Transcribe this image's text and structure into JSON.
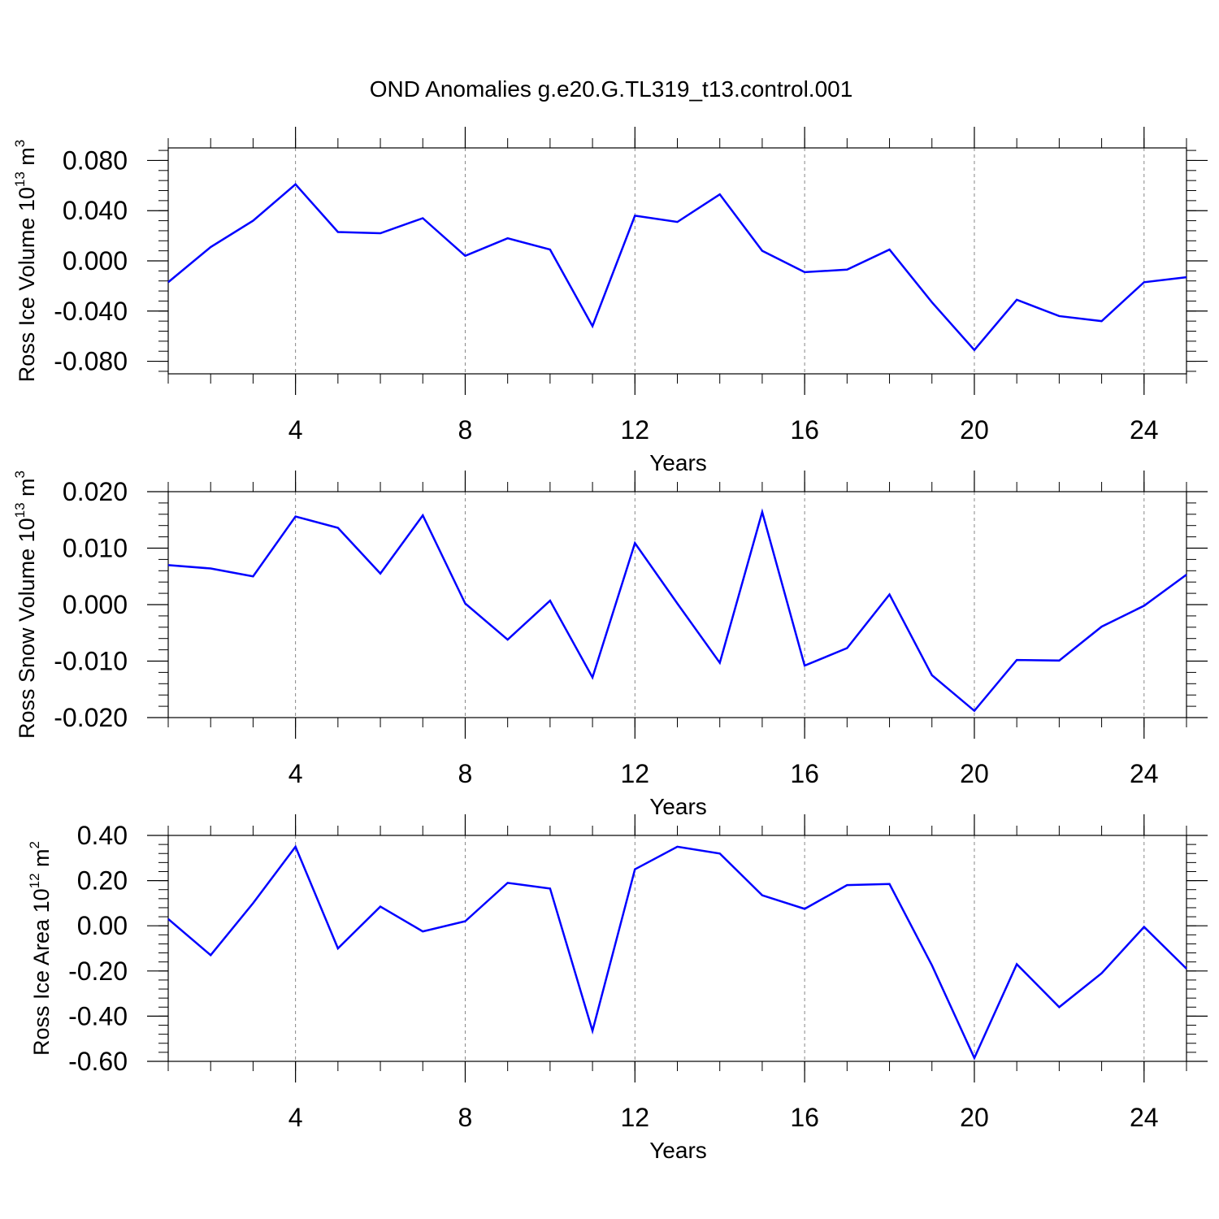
{
  "figure": {
    "title": "OND Anomalies g.e20.G.TL319_t13.control.001",
    "line_color": "#0000ff",
    "grid_color": "#888888"
  },
  "chart_data": [
    {
      "type": "line",
      "title": "OND Anomalies g.e20.G.TL319_t13.control.001",
      "xlabel": "Years",
      "ylabel": {
        "text": "Ross Ice Volume 10",
        "exponent": "13",
        "unit": " m",
        "unit_exponent": "3"
      },
      "xlim": [
        1,
        25
      ],
      "ylim": [
        -0.09,
        0.09
      ],
      "x_ticks": [
        4,
        8,
        12,
        16,
        20,
        24
      ],
      "x_tick_labels": [
        "4",
        "8",
        "12",
        "16",
        "20",
        "24"
      ],
      "y_ticks": [
        0.08,
        0.04,
        0.0,
        -0.04,
        -0.08
      ],
      "y_tick_labels": [
        "0.080",
        "0.040",
        "0.000",
        "-0.040",
        "-0.080"
      ],
      "grid": "x dashed at labeled ticks",
      "series": [
        {
          "x": [
            1,
            2,
            3,
            4,
            5,
            6,
            7,
            8,
            9,
            10,
            11,
            12,
            13,
            14,
            15,
            16,
            17,
            18,
            19,
            20,
            21,
            22,
            23,
            24,
            25
          ],
          "values": [
            -0.017,
            0.011,
            0.032,
            0.061,
            0.023,
            0.022,
            0.034,
            0.004,
            0.018,
            0.009,
            -0.052,
            0.036,
            0.031,
            0.053,
            0.008,
            -0.009,
            -0.007,
            0.009,
            -0.033,
            -0.071,
            -0.031,
            -0.044,
            -0.048,
            -0.017,
            -0.013
          ]
        }
      ]
    },
    {
      "type": "line",
      "xlabel": "Years",
      "ylabel": {
        "text": "Ross Snow Volume 10",
        "exponent": "13",
        "unit": " m",
        "unit_exponent": "3"
      },
      "xlim": [
        1,
        25
      ],
      "ylim": [
        -0.02,
        0.02
      ],
      "x_ticks": [
        4,
        8,
        12,
        16,
        20,
        24
      ],
      "x_tick_labels": [
        "4",
        "8",
        "12",
        "16",
        "20",
        "24"
      ],
      "y_ticks": [
        0.02,
        0.01,
        0.0,
        -0.01,
        -0.02
      ],
      "y_tick_labels": [
        "0.020",
        "0.010",
        "0.000",
        "-0.010",
        "-0.020"
      ],
      "grid": "x dashed at labeled ticks",
      "series": [
        {
          "x": [
            1,
            2,
            3,
            4,
            5,
            6,
            7,
            8,
            9,
            10,
            11,
            12,
            13,
            14,
            15,
            16,
            17,
            18,
            19,
            20,
            21,
            22,
            23,
            24,
            25
          ],
          "values": [
            0.007,
            0.0064,
            0.005,
            0.0156,
            0.0136,
            0.0055,
            0.0158,
            0.0002,
            -0.0062,
            0.0007,
            -0.0129,
            0.0109,
            0.0002,
            -0.0103,
            0.0164,
            -0.0108,
            -0.0077,
            0.0018,
            -0.0125,
            -0.0188,
            -0.0098,
            -0.0099,
            -0.0039,
            -0.0002,
            0.0053
          ]
        }
      ]
    },
    {
      "type": "line",
      "xlabel": "Years",
      "ylabel": {
        "text": "Ross Ice Area 10",
        "exponent": "12",
        "unit": " m",
        "unit_exponent": "2"
      },
      "xlim": [
        1,
        25
      ],
      "ylim": [
        -0.6,
        0.4
      ],
      "x_ticks": [
        4,
        8,
        12,
        16,
        20,
        24
      ],
      "x_tick_labels": [
        "4",
        "8",
        "12",
        "16",
        "20",
        "24"
      ],
      "y_ticks": [
        0.4,
        0.2,
        0.0,
        -0.2,
        -0.4,
        -0.6
      ],
      "y_tick_labels": [
        "0.40",
        "0.20",
        "0.00",
        "-0.20",
        "-0.40",
        "-0.60"
      ],
      "grid": "x dashed at labeled ticks",
      "series": [
        {
          "x": [
            1,
            2,
            3,
            4,
            5,
            6,
            7,
            8,
            9,
            10,
            11,
            12,
            13,
            14,
            15,
            16,
            17,
            18,
            19,
            20,
            21,
            22,
            23,
            24,
            25
          ],
          "values": [
            0.03,
            -0.13,
            0.1,
            0.35,
            -0.1,
            0.085,
            -0.025,
            0.02,
            0.19,
            0.165,
            -0.465,
            0.25,
            0.35,
            0.32,
            0.135,
            0.075,
            0.18,
            0.185,
            -0.175,
            -0.585,
            -0.17,
            -0.36,
            -0.21,
            -0.005,
            -0.19
          ]
        }
      ]
    }
  ]
}
